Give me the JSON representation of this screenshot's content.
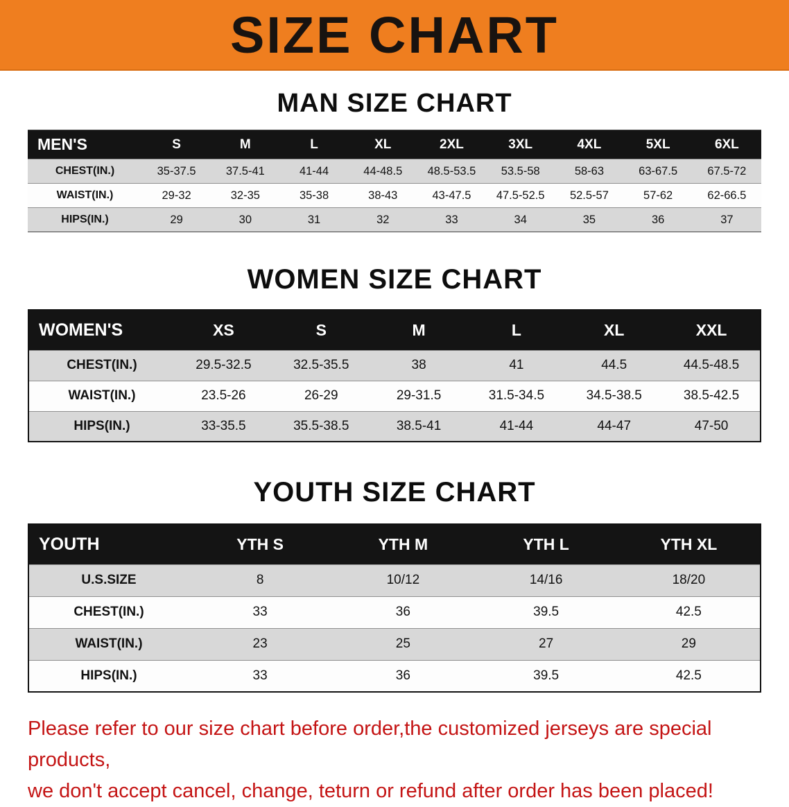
{
  "banner": {
    "title": "SIZE CHART",
    "bg_color": "#ef7e1f",
    "text_color": "#181310"
  },
  "chart_data": [
    {
      "type": "table",
      "title": "MAN SIZE CHART",
      "corner": "MEN'S",
      "columns": [
        "S",
        "M",
        "L",
        "XL",
        "2XL",
        "3XL",
        "4XL",
        "5XL",
        "6XL"
      ],
      "rows": [
        {
          "label": "CHEST(IN.)",
          "values": [
            "35-37.5",
            "37.5-41",
            "41-44",
            "44-48.5",
            "48.5-53.5",
            "53.5-58",
            "58-63",
            "63-67.5",
            "67.5-72"
          ]
        },
        {
          "label": "WAIST(IN.)",
          "values": [
            "29-32",
            "32-35",
            "35-38",
            "38-43",
            "43-47.5",
            "47.5-52.5",
            "52.5-57",
            "57-62",
            "62-66.5"
          ]
        },
        {
          "label": "HIPS(IN.)",
          "values": [
            "29",
            "30",
            "31",
            "32",
            "33",
            "34",
            "35",
            "36",
            "37"
          ]
        }
      ]
    },
    {
      "type": "table",
      "title": "WOMEN SIZE CHART",
      "corner": "WOMEN'S",
      "columns": [
        "XS",
        "S",
        "M",
        "L",
        "XL",
        "XXL"
      ],
      "rows": [
        {
          "label": "CHEST(IN.)",
          "values": [
            "29.5-32.5",
            "32.5-35.5",
            "38",
            "41",
            "44.5",
            "44.5-48.5"
          ]
        },
        {
          "label": "WAIST(IN.)",
          "values": [
            "23.5-26",
            "26-29",
            "29-31.5",
            "31.5-34.5",
            "34.5-38.5",
            "38.5-42.5"
          ]
        },
        {
          "label": "HIPS(IN.)",
          "values": [
            "33-35.5",
            "35.5-38.5",
            "38.5-41",
            "41-44",
            "44-47",
            "47-50"
          ]
        }
      ]
    },
    {
      "type": "table",
      "title": "YOUTH SIZE CHART",
      "corner": "YOUTH",
      "columns": [
        "YTH S",
        "YTH M",
        "YTH L",
        "YTH XL"
      ],
      "rows": [
        {
          "label": "U.S.SIZE",
          "values": [
            "8",
            "10/12",
            "14/16",
            "18/20"
          ]
        },
        {
          "label": "CHEST(IN.)",
          "values": [
            "33",
            "36",
            "39.5",
            "42.5"
          ]
        },
        {
          "label": "WAIST(IN.)",
          "values": [
            "23",
            "25",
            "27",
            "29"
          ]
        },
        {
          "label": "HIPS(IN.)",
          "values": [
            "33",
            "36",
            "39.5",
            "42.5"
          ]
        }
      ]
    }
  ],
  "footer": {
    "text_color": "#c41414",
    "lines": [
      "Please refer to our size chart before order,the customized jerseys are special products,",
      "we don't accept cancel, change, teturn or refund after order has been placed!"
    ]
  }
}
